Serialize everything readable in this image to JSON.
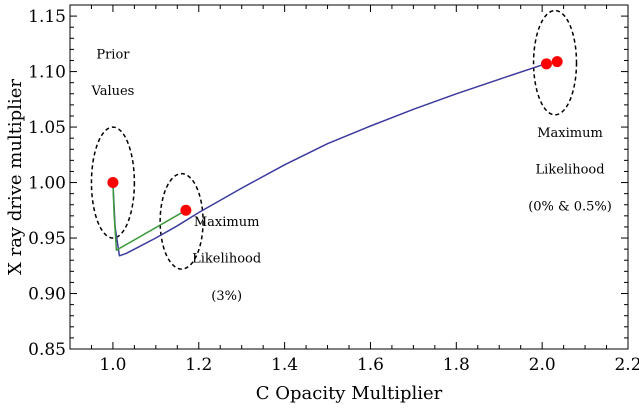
{
  "chart_data": {
    "type": "line",
    "title": "",
    "xlabel": "C Opacity Multiplier",
    "ylabel": "X ray drive multiplier",
    "xlim": [
      0.9,
      2.2
    ],
    "ylim": [
      0.85,
      1.16
    ],
    "xticks": [
      1.0,
      1.2,
      1.4,
      1.6,
      1.8,
      2.0,
      2.2
    ],
    "yticks": [
      0.85,
      0.9,
      0.95,
      1.0,
      1.05,
      1.1,
      1.15
    ],
    "xtick_labels": [
      "1.0",
      "1.2",
      "1.4",
      "1.6",
      "1.8",
      "2.0",
      "2.2"
    ],
    "ytick_labels": [
      "0.85",
      "0.90",
      "0.95",
      "1.00",
      "1.05",
      "1.10",
      "1.15"
    ],
    "grid": false,
    "series": [
      {
        "color": "#3b3b9e",
        "x": [
          1.0,
          1.005,
          1.015,
          1.03,
          1.06,
          1.1,
          1.15,
          1.2,
          1.3,
          1.4,
          1.5,
          1.6,
          1.7,
          1.8,
          1.9,
          2.0
        ],
        "y": [
          1.0,
          0.96,
          0.934,
          0.936,
          0.942,
          0.95,
          0.961,
          0.973,
          0.995,
          1.016,
          1.035,
          1.051,
          1.066,
          1.08,
          1.093,
          1.106
        ]
      },
      {
        "color": "#3c9a3c",
        "x": [
          1.0,
          1.003,
          1.008,
          1.17
        ],
        "y": [
          1.0,
          0.97,
          0.939,
          0.975
        ]
      }
    ],
    "points": {
      "color": "#ff0000",
      "x": [
        1.0,
        1.17,
        2.01,
        2.035
      ],
      "y": [
        1.0,
        0.975,
        1.107,
        1.109
      ]
    },
    "ellipses": [
      {
        "cx": 1.0,
        "cy": 1.0,
        "rx": 0.05,
        "ry": 0.05
      },
      {
        "cx": 1.16,
        "cy": 0.965,
        "rx": 0.05,
        "ry": 0.043
      },
      {
        "cx": 2.03,
        "cy": 1.108,
        "rx": 0.05,
        "ry": 0.047
      }
    ],
    "annotations": [
      {
        "lines": [
          "Prior",
          "Values"
        ],
        "x": 1.0,
        "y": [
          1.112,
          1.079
        ]
      },
      {
        "lines": [
          "Maximum",
          "Likelihood",
          "(3%)"
        ],
        "x": 1.265,
        "y": [
          0.961,
          0.928,
          0.894
        ]
      },
      {
        "lines": [
          "Maximum",
          "Likelihood",
          "(0% & 0.5%)"
        ],
        "x": 2.065,
        "y": [
          1.041,
          1.008,
          0.975
        ]
      }
    ]
  }
}
